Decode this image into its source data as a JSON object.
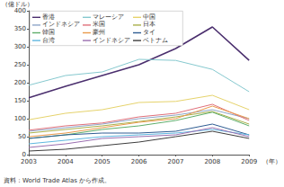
{
  "chart_data": {
    "type": "line",
    "y_label": "（億ドル）",
    "x_label": "（年）",
    "source": "資料：World Trade Atlas から作成。",
    "categories": [
      "2003",
      "2004",
      "2005",
      "2006",
      "2007",
      "2008",
      "2009"
    ],
    "ylim": [
      0,
      400
    ],
    "yticks": [
      0,
      50,
      100,
      150,
      200,
      250,
      300,
      350,
      400
    ],
    "grid": false,
    "legend": "upper left",
    "series": [
      {
        "name": "香港",
        "color": "#4b2f6e",
        "values": [
          158,
          190,
          220,
          250,
          295,
          355,
          262
        ]
      },
      {
        "name": "マレーシア",
        "color": "#86c9cf",
        "values": [
          193,
          220,
          230,
          265,
          262,
          237,
          175
        ]
      },
      {
        "name": "中国",
        "color": "#e6d36c",
        "values": [
          97,
          115,
          125,
          145,
          148,
          165,
          125
        ]
      },
      {
        "name": "インドネシア",
        "color": "#8ea6c8",
        "values": [
          65,
          75,
          85,
          100,
          110,
          125,
          100
        ]
      },
      {
        "name": "米国",
        "color": "#e0707a",
        "values": [
          68,
          80,
          88,
          105,
          115,
          140,
          95
        ]
      },
      {
        "name": "日本",
        "color": "#a9b04a",
        "values": [
          60,
          70,
          80,
          92,
          105,
          120,
          85
        ]
      },
      {
        "name": "韓国",
        "color": "#5fae6a",
        "values": [
          45,
          55,
          70,
          80,
          95,
          118,
          80
        ]
      },
      {
        "name": "豪州",
        "color": "#e99a4c",
        "values": [
          50,
          60,
          75,
          90,
          100,
          135,
          100
        ]
      },
      {
        "name": "タイ",
        "color": "#2f5d93",
        "values": [
          45,
          55,
          60,
          60,
          65,
          85,
          55
        ]
      },
      {
        "name": "台湾",
        "color": "#5fb7e0",
        "values": [
          30,
          40,
          50,
          55,
          60,
          70,
          55
        ]
      },
      {
        "name": "インドネシア",
        "color": "#9a6fb0",
        "values": [
          20,
          30,
          45,
          50,
          55,
          75,
          50
        ]
      },
      {
        "name": "ベトナム",
        "color": "#3d3d3d",
        "values": [
          10,
          15,
          25,
          35,
          50,
          65,
          45
        ]
      }
    ]
  }
}
